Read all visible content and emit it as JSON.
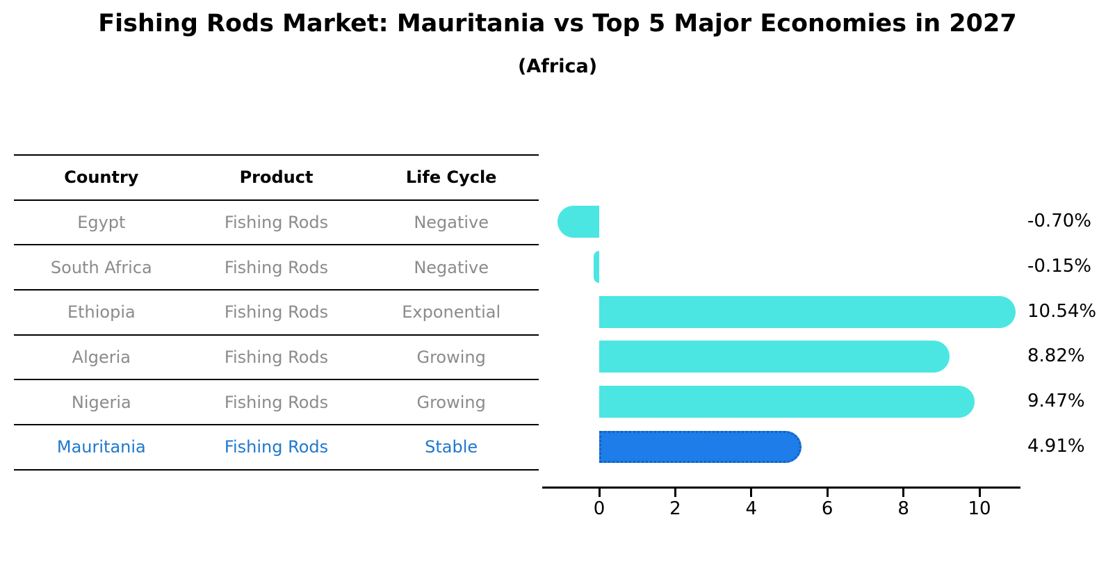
{
  "title": "Fishing Rods Market: Mauritania vs Top 5 Major Economies in 2027",
  "subtitle": "(Africa)",
  "table": {
    "headers": [
      "Country",
      "Product",
      "Life Cycle"
    ],
    "rows": [
      {
        "country": "Egypt",
        "product": "Fishing Rods",
        "life_cycle": "Negative",
        "highlighted": false
      },
      {
        "country": "South Africa",
        "product": "Fishing Rods",
        "life_cycle": "Negative",
        "highlighted": false
      },
      {
        "country": "Ethiopia",
        "product": "Fishing Rods",
        "life_cycle": "Exponential",
        "highlighted": false
      },
      {
        "country": "Algeria",
        "product": "Fishing Rods",
        "life_cycle": "Growing",
        "highlighted": false
      },
      {
        "country": "Nigeria",
        "product": "Fishing Rods",
        "life_cycle": "Growing",
        "highlighted": false
      },
      {
        "country": "Mauritania",
        "product": "Fishing Rods",
        "life_cycle": "Stable",
        "highlighted": true
      }
    ]
  },
  "chart_data": {
    "type": "bar",
    "orientation": "horizontal",
    "title": "Fishing Rods Market: Mauritania vs Top 5 Major Economies in 2027",
    "subtitle": "(Africa)",
    "categories": [
      "Egypt",
      "South Africa",
      "Ethiopia",
      "Algeria",
      "Nigeria",
      "Mauritania"
    ],
    "values": [
      -0.7,
      -0.15,
      10.54,
      8.82,
      9.47,
      4.91
    ],
    "value_labels": [
      "-0.70%",
      "-0.15%",
      "10.54%",
      "8.82%",
      "9.47%",
      "4.91%"
    ],
    "xticks": [
      0,
      2,
      4,
      6,
      8,
      10
    ],
    "xlim": [
      -1.5,
      11.1
    ],
    "xlabel": "",
    "ylabel": "",
    "grid": false,
    "legend": false,
    "highlight_index": 5
  },
  "colors": {
    "background": "#FFFFFF",
    "bar": "#4BE6E2",
    "highlight_bar": "#1E7DE8",
    "highlight_bar_edge": "#1560C0",
    "highlight_text": "#2078CC",
    "table_text": "#8B8B8B",
    "header_text": "#000000",
    "axis": "#000000"
  }
}
